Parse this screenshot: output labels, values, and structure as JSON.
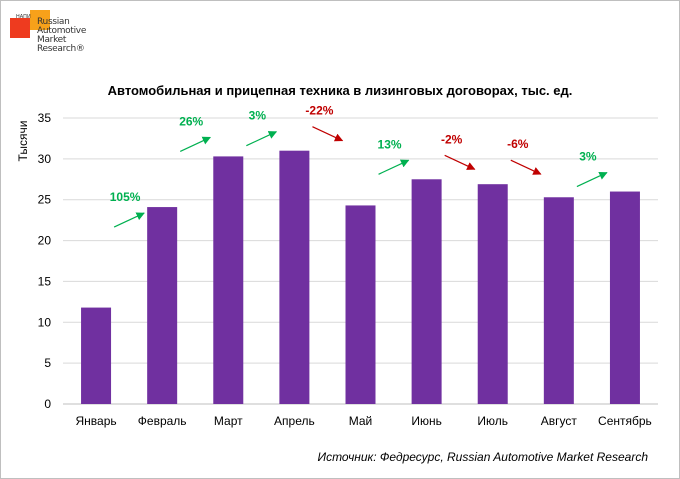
{
  "logo": {
    "small": "НАПИ",
    "text": "Russian\nAutomotive\nMarket\nResearch®"
  },
  "title": "Автомобильная и прицепная техника в лизинговых договорах, тыс. ед.",
  "source": "Источник: Федресурс, Russian Automotive Market Research",
  "colors": {
    "bar": "#7030a0",
    "up": "#00b050",
    "down": "#c00000",
    "grid": "#d9d9d9"
  },
  "chart_data": {
    "type": "bar",
    "title": "Автомобильная и прицепная техника в лизинговых договорах, тыс. ед.",
    "xlabel": "",
    "ylabel": "Тысячи",
    "ylim": [
      0,
      35
    ],
    "yticks": [
      0,
      5,
      10,
      15,
      20,
      25,
      30,
      35
    ],
    "grid": true,
    "categories": [
      "Январь",
      "Февраль",
      "Март",
      "Апрель",
      "Май",
      "Июнь",
      "Июль",
      "Август",
      "Сентябрь"
    ],
    "values": [
      11.8,
      24.1,
      30.3,
      31.0,
      24.3,
      27.5,
      26.9,
      25.3,
      26.0
    ],
    "annotations": [
      {
        "between": [
          0,
          1
        ],
        "text": "105%",
        "direction": "up"
      },
      {
        "between": [
          1,
          2
        ],
        "text": "26%",
        "direction": "up"
      },
      {
        "between": [
          2,
          3
        ],
        "text": "3%",
        "direction": "up"
      },
      {
        "between": [
          3,
          4
        ],
        "text": "-22%",
        "direction": "down"
      },
      {
        "between": [
          4,
          5
        ],
        "text": "13%",
        "direction": "up"
      },
      {
        "between": [
          5,
          6
        ],
        "text": "-2%",
        "direction": "down"
      },
      {
        "between": [
          6,
          7
        ],
        "text": "-6%",
        "direction": "down"
      },
      {
        "between": [
          7,
          8
        ],
        "text": "3%",
        "direction": "up"
      }
    ]
  }
}
